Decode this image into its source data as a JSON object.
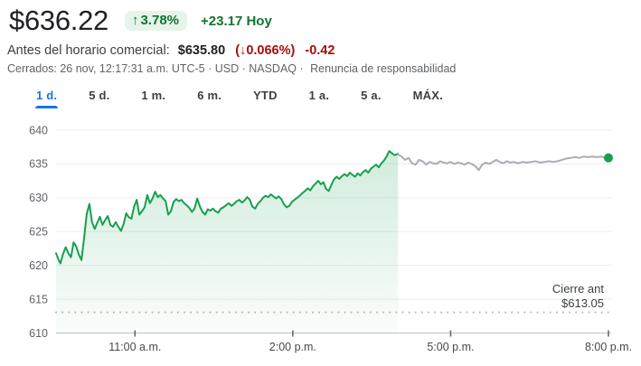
{
  "colors": {
    "accent_blue": "#1a73e8",
    "positive_green": "#137333",
    "badge_bg": "#e6f4ea",
    "negative_red": "#a50e0e",
    "line_green": "#17a04f",
    "line_gray": "#a9adb3"
  },
  "header": {
    "price": "$636.22",
    "badge": {
      "arrow": "↑",
      "percent": "3.78%"
    },
    "change_today": "+23.17 Hoy",
    "premarket": {
      "label": "Antes del horario comercial:",
      "price": "$635.80",
      "paren_open": "(",
      "arrow": "↓",
      "percent": "0.066%",
      "paren_close": ")",
      "change": "-0.42"
    },
    "status_prefix": "Cerrados: 26 nov, 12:17:31 a.m. UTC-5 · USD · NASDAQ ·",
    "disclaimer_link": "Renuncia de responsabilidad"
  },
  "tabs": [
    {
      "label": "1 d.",
      "active": true
    },
    {
      "label": "5 d.",
      "active": false
    },
    {
      "label": "1 m.",
      "active": false
    },
    {
      "label": "6 m.",
      "active": false
    },
    {
      "label": "YTD",
      "active": false
    },
    {
      "label": "1 a.",
      "active": false
    },
    {
      "label": "5 a.",
      "active": false
    },
    {
      "label": "MÁX.",
      "active": false
    }
  ],
  "chart_data": {
    "type": "line",
    "title": "",
    "xlabel": "",
    "ylabel": "",
    "grid": true,
    "x_axis_note": "t = minutes after 9:30 a.m.; session 9:30 a.m.–4:00 p.m. (green), after-hours to 8:00 p.m. (gray)",
    "ylim": [
      610,
      641
    ],
    "y_ticks": [
      640,
      635,
      630,
      625,
      620,
      615,
      610
    ],
    "x_ticks": [
      {
        "label": "11:00 a.m.",
        "t": 90
      },
      {
        "label": "2:00 p.m.",
        "t": 270
      },
      {
        "label": "5:00 p.m.",
        "t": 450
      },
      {
        "label": "8:00 p.m.",
        "t": 630
      }
    ],
    "prev_close": {
      "value": 613.05,
      "label_lines": [
        "Cierre ant",
        "$613.05"
      ]
    },
    "end_marker": {
      "t": 630,
      "value": 635.9,
      "color": "#17a04f"
    },
    "series": [
      {
        "name": "regular",
        "color": "#17a04f",
        "fill": true,
        "points": [
          [
            0,
            621.8
          ],
          [
            3,
            620.8
          ],
          [
            5,
            620.3
          ],
          [
            8,
            621.7
          ],
          [
            11,
            622.7
          ],
          [
            14,
            621.8
          ],
          [
            17,
            621.2
          ],
          [
            20,
            623.4
          ],
          [
            23,
            622.8
          ],
          [
            26,
            621.6
          ],
          [
            29,
            620.8
          ],
          [
            32,
            624.0
          ],
          [
            35,
            627.6
          ],
          [
            38,
            629.1
          ],
          [
            41,
            626.4
          ],
          [
            44,
            625.4
          ],
          [
            47,
            626.3
          ],
          [
            50,
            627.2
          ],
          [
            53,
            626.0
          ],
          [
            56,
            626.7
          ],
          [
            59,
            627.3
          ],
          [
            62,
            626.0
          ],
          [
            65,
            625.7
          ],
          [
            68,
            626.4
          ],
          [
            71,
            625.7
          ],
          [
            74,
            625.1
          ],
          [
            77,
            626.1
          ],
          [
            80,
            627.7
          ],
          [
            83,
            627.1
          ],
          [
            86,
            626.9
          ],
          [
            89,
            628.7
          ],
          [
            92,
            629.7
          ],
          [
            95,
            627.5
          ],
          [
            98,
            628.0
          ],
          [
            101,
            628.6
          ],
          [
            104,
            630.4
          ],
          [
            107,
            629.2
          ],
          [
            110,
            629.9
          ],
          [
            113,
            630.9
          ],
          [
            116,
            630.1
          ],
          [
            119,
            630.4
          ],
          [
            122,
            629.9
          ],
          [
            125,
            629.5
          ],
          [
            128,
            627.5
          ],
          [
            131,
            628.0
          ],
          [
            134,
            629.4
          ],
          [
            137,
            629.8
          ],
          [
            140,
            629.5
          ],
          [
            143,
            629.7
          ],
          [
            146,
            629.2
          ],
          [
            149,
            628.9
          ],
          [
            152,
            628.5
          ],
          [
            155,
            627.9
          ],
          [
            158,
            628.4
          ],
          [
            161,
            629.9
          ],
          [
            164,
            628.7
          ],
          [
            167,
            627.9
          ],
          [
            170,
            627.5
          ],
          [
            173,
            628.3
          ],
          [
            176,
            628.1
          ],
          [
            179,
            628.4
          ],
          [
            182,
            628.0
          ],
          [
            185,
            627.8
          ],
          [
            188,
            628.4
          ],
          [
            191,
            628.6
          ],
          [
            194,
            628.9
          ],
          [
            197,
            629.2
          ],
          [
            200,
            628.8
          ],
          [
            203,
            629.1
          ],
          [
            206,
            629.5
          ],
          [
            209,
            629.7
          ],
          [
            212,
            629.3
          ],
          [
            215,
            629.6
          ],
          [
            218,
            630.1
          ],
          [
            221,
            629.7
          ],
          [
            224,
            628.7
          ],
          [
            227,
            628.4
          ],
          [
            230,
            629.1
          ],
          [
            233,
            629.5
          ],
          [
            236,
            630.0
          ],
          [
            239,
            630.3
          ],
          [
            242,
            630.1
          ],
          [
            245,
            630.5
          ],
          [
            248,
            630.2
          ],
          [
            251,
            629.9
          ],
          [
            254,
            630.2
          ],
          [
            257,
            629.8
          ],
          [
            260,
            629.0
          ],
          [
            263,
            628.6
          ],
          [
            266,
            628.8
          ],
          [
            269,
            629.4
          ],
          [
            272,
            629.7
          ],
          [
            275,
            630.0
          ],
          [
            278,
            630.3
          ],
          [
            281,
            630.7
          ],
          [
            284,
            631.0
          ],
          [
            287,
            631.4
          ],
          [
            290,
            631.1
          ],
          [
            293,
            631.7
          ],
          [
            296,
            632.1
          ],
          [
            299,
            632.5
          ],
          [
            302,
            632.0
          ],
          [
            305,
            632.3
          ],
          [
            308,
            631.3
          ],
          [
            311,
            631.0
          ],
          [
            314,
            631.9
          ],
          [
            317,
            632.7
          ],
          [
            320,
            633.1
          ],
          [
            323,
            632.8
          ],
          [
            326,
            633.2
          ],
          [
            329,
            633.5
          ],
          [
            332,
            633.2
          ],
          [
            335,
            633.7
          ],
          [
            338,
            633.4
          ],
          [
            341,
            633.1
          ],
          [
            344,
            633.6
          ],
          [
            347,
            633.3
          ],
          [
            350,
            633.8
          ],
          [
            353,
            634.1
          ],
          [
            356,
            633.7
          ],
          [
            359,
            634.3
          ],
          [
            362,
            634.6
          ],
          [
            365,
            634.9
          ],
          [
            368,
            634.5
          ],
          [
            371,
            635.1
          ],
          [
            374,
            635.5
          ],
          [
            377,
            636.1
          ],
          [
            380,
            636.9
          ],
          [
            383,
            636.6
          ],
          [
            386,
            636.3
          ],
          [
            390,
            636.5
          ]
        ]
      },
      {
        "name": "after_hours",
        "color": "#a9adb3",
        "fill": false,
        "points": [
          [
            390,
            636.4
          ],
          [
            394,
            636.1
          ],
          [
            398,
            635.6
          ],
          [
            402,
            635.9
          ],
          [
            406,
            635.1
          ],
          [
            410,
            634.9
          ],
          [
            414,
            635.6
          ],
          [
            418,
            635.4
          ],
          [
            422,
            634.9
          ],
          [
            426,
            635.3
          ],
          [
            430,
            635.1
          ],
          [
            434,
            635.0
          ],
          [
            438,
            635.4
          ],
          [
            442,
            635.2
          ],
          [
            446,
            635.1
          ],
          [
            450,
            635.3
          ],
          [
            454,
            635.0
          ],
          [
            458,
            635.2
          ],
          [
            462,
            635.1
          ],
          [
            466,
            634.9
          ],
          [
            470,
            635.2
          ],
          [
            474,
            635.0
          ],
          [
            478,
            634.7
          ],
          [
            482,
            634.1
          ],
          [
            486,
            634.9
          ],
          [
            490,
            635.2
          ],
          [
            494,
            635.0
          ],
          [
            498,
            635.3
          ],
          [
            502,
            635.6
          ],
          [
            506,
            635.3
          ],
          [
            510,
            635.1
          ],
          [
            514,
            635.4
          ],
          [
            518,
            635.2
          ],
          [
            522,
            635.3
          ],
          [
            527,
            635.1
          ],
          [
            532,
            635.3
          ],
          [
            537,
            635.2
          ],
          [
            542,
            635.3
          ],
          [
            547,
            635.4
          ],
          [
            552,
            635.2
          ],
          [
            557,
            635.3
          ],
          [
            562,
            635.4
          ],
          [
            567,
            635.3
          ],
          [
            572,
            635.4
          ],
          [
            577,
            635.6
          ],
          [
            582,
            635.8
          ],
          [
            587,
            635.9
          ],
          [
            592,
            636.0
          ],
          [
            597,
            635.9
          ],
          [
            602,
            636.1
          ],
          [
            607,
            636.0
          ],
          [
            612,
            636.1
          ],
          [
            617,
            636.0
          ],
          [
            622,
            636.1
          ],
          [
            626,
            635.9
          ],
          [
            630,
            635.9
          ]
        ]
      }
    ]
  }
}
